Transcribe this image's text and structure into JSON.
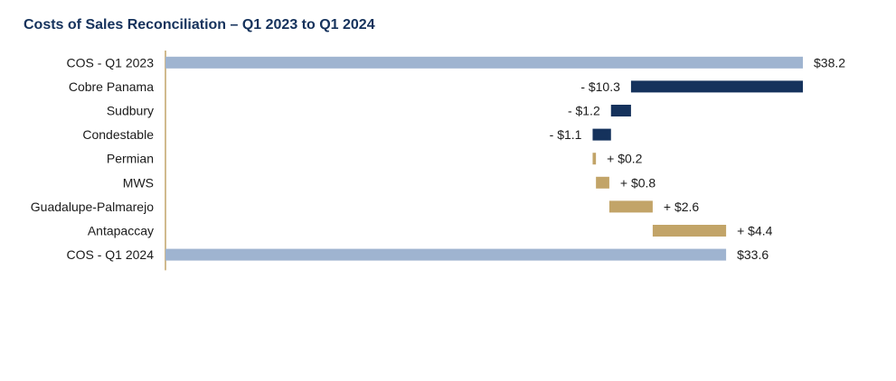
{
  "chart_data": {
    "type": "waterfall",
    "title": "Costs of Sales Reconciliation – Q1 2023 to Q1 2024",
    "categories": [
      "COS - Q1 2023",
      "Cobre Panama",
      "Sudbury",
      "Condestable",
      "Permian",
      "MWS",
      "Guadalupe-Palmarejo",
      "Antapaccay",
      "COS - Q1 2024"
    ],
    "values": [
      38.2,
      -10.3,
      -1.2,
      -1.1,
      0.2,
      0.8,
      2.6,
      4.4,
      33.6
    ],
    "kinds": [
      "total",
      "delta",
      "delta",
      "delta",
      "delta",
      "delta",
      "delta",
      "delta",
      "total"
    ],
    "value_labels": [
      "$38.2",
      "- $10.3",
      "- $1.2",
      "- $1.1",
      "+ $0.2",
      "+ $0.8",
      "+ $2.6",
      "+ $4.4",
      "$33.6"
    ],
    "xlim": [
      0,
      38.2
    ],
    "colors": {
      "total": "#9fb4d0",
      "decrease": "#15325c",
      "increase": "#c2a468",
      "axis": "#c2a468"
    },
    "grid": false,
    "legend": "none"
  }
}
